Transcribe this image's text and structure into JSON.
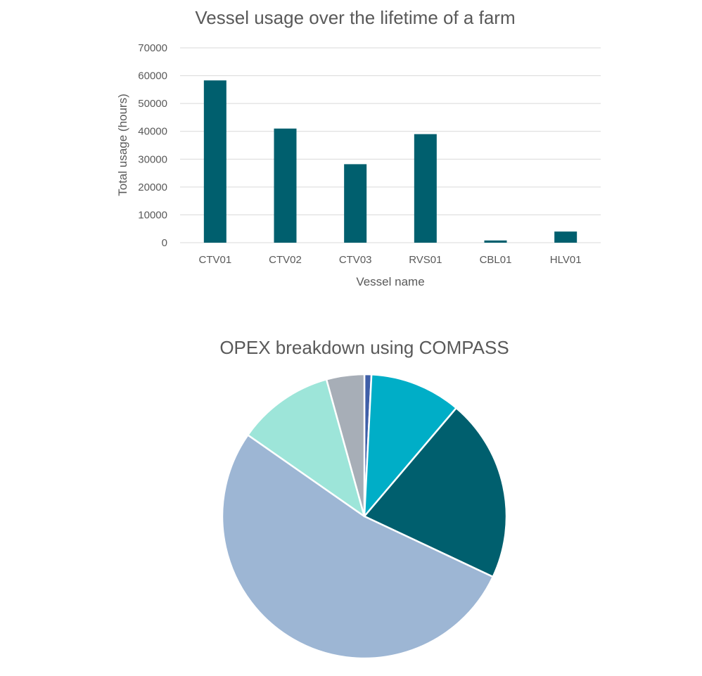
{
  "chart_data": [
    {
      "type": "bar",
      "title": "Vessel usage over the lifetime of a farm",
      "xlabel": "Vessel name",
      "ylabel": "Total usage (hours)",
      "categories": [
        "CTV01",
        "CTV02",
        "CTV03",
        "RVS01",
        "CBL01",
        "HLV01"
      ],
      "values": [
        58300,
        41000,
        28200,
        39000,
        800,
        4000
      ],
      "ylim": [
        0,
        70000
      ],
      "yticks": [
        "0",
        "10000",
        "20000",
        "30000",
        "40000",
        "50000",
        "60000",
        "70000"
      ],
      "grid": true,
      "legend": "none",
      "colors": {
        "bar": "#005F6E",
        "grid": "#D9D9D9",
        "axis": "#D9D9D9"
      }
    },
    {
      "type": "pie",
      "title": "OPEX breakdown using COMPASS",
      "legend": "none",
      "slices": [
        {
          "value": 0.8,
          "color": "#3F5FA8"
        },
        {
          "value": 10.4,
          "color": "#00AEC7"
        },
        {
          "value": 20.8,
          "color": "#005F6E"
        },
        {
          "value": 52.7,
          "color": "#9DB6D4"
        },
        {
          "value": 11.0,
          "color": "#9DE5D9"
        },
        {
          "value": 4.3,
          "color": "#A7AEB7"
        }
      ]
    }
  ]
}
